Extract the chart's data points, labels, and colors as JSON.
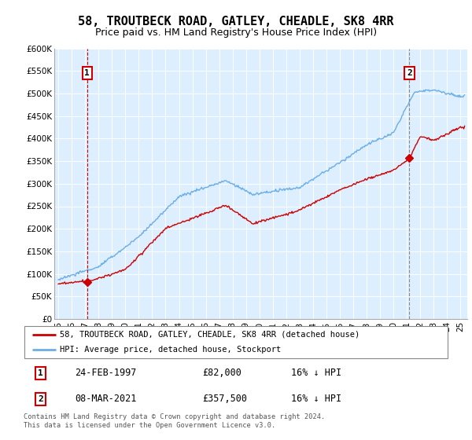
{
  "title": "58, TROUTBECK ROAD, GATLEY, CHEADLE, SK8 4RR",
  "subtitle": "Price paid vs. HM Land Registry's House Price Index (HPI)",
  "ylim": [
    0,
    600000
  ],
  "yticks": [
    0,
    50000,
    100000,
    150000,
    200000,
    250000,
    300000,
    350000,
    400000,
    450000,
    500000,
    550000,
    600000
  ],
  "ytick_labels": [
    "£0",
    "£50K",
    "£100K",
    "£150K",
    "£200K",
    "£250K",
    "£300K",
    "£350K",
    "£400K",
    "£450K",
    "£500K",
    "£550K",
    "£600K"
  ],
  "xlim": [
    1994.7,
    2025.5
  ],
  "xticks": [
    1995,
    1996,
    1997,
    1998,
    1999,
    2000,
    2001,
    2002,
    2003,
    2004,
    2005,
    2006,
    2007,
    2008,
    2009,
    2010,
    2011,
    2012,
    2013,
    2014,
    2015,
    2016,
    2017,
    2018,
    2019,
    2020,
    2021,
    2022,
    2023,
    2024,
    2025
  ],
  "xtick_labels": [
    "95",
    "96",
    "97",
    "98",
    "99",
    "00",
    "01",
    "02",
    "03",
    "04",
    "05",
    "06",
    "07",
    "08",
    "09",
    "10",
    "11",
    "12",
    "13",
    "14",
    "15",
    "16",
    "17",
    "18",
    "19",
    "20",
    "21",
    "22",
    "23",
    "24",
    "25"
  ],
  "hpi_color": "#6aaee6",
  "price_color": "#cc0000",
  "background_color": "#ddeeff",
  "transaction1": {
    "label": "1",
    "year": 1997.15,
    "price": 82000,
    "date": "24-FEB-1997",
    "amount": "£82,000",
    "pct": "16% ↓ HPI",
    "vline_color": "#cc0000",
    "vline_style": "--"
  },
  "transaction2": {
    "label": "2",
    "year": 2021.18,
    "price": 357500,
    "date": "08-MAR-2021",
    "amount": "£357,500",
    "pct": "16% ↓ HPI",
    "vline_color": "#888888",
    "vline_style": "--"
  },
  "legend_line1": "58, TROUTBECK ROAD, GATLEY, CHEADLE, SK8 4RR (detached house)",
  "legend_line2": "HPI: Average price, detached house, Stockport",
  "footer": "Contains HM Land Registry data © Crown copyright and database right 2024.\nThis data is licensed under the Open Government Licence v3.0.",
  "title_fontsize": 11,
  "subtitle_fontsize": 9
}
